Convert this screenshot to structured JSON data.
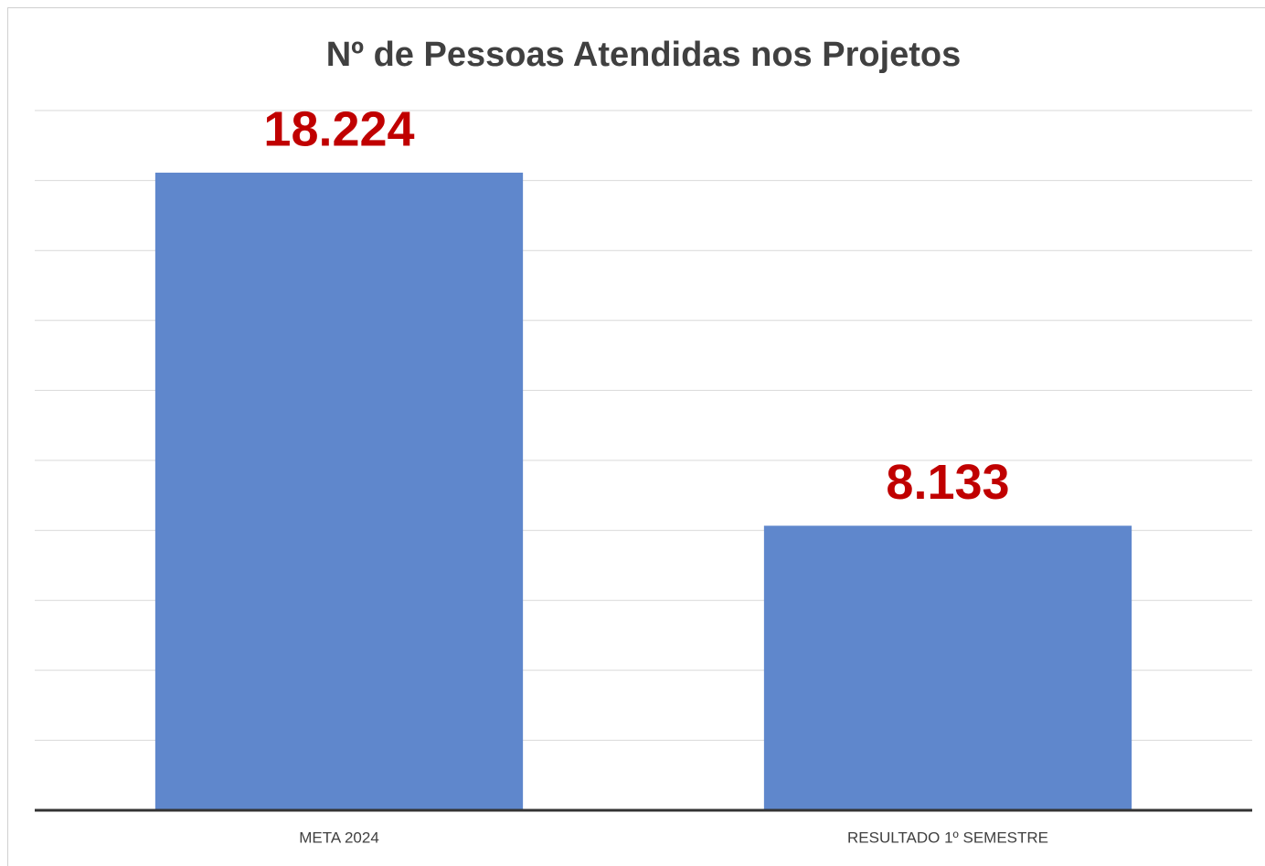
{
  "chart_data": {
    "type": "bar",
    "title": "Nº de Pessoas Atendidas nos Projetos",
    "categories": [
      "META 2024",
      "RESULTADO 1º SEMESTRE"
    ],
    "values": [
      18224,
      8133
    ],
    "value_labels": [
      "18.224",
      "8.133"
    ],
    "color": "#5f87cc",
    "value_label_color": "#c00000",
    "ylim": [
      0,
      20000
    ],
    "yticks": [
      0,
      2000,
      4000,
      6000,
      8000,
      10000,
      12000,
      14000,
      16000,
      18000,
      20000
    ],
    "grid": true
  }
}
